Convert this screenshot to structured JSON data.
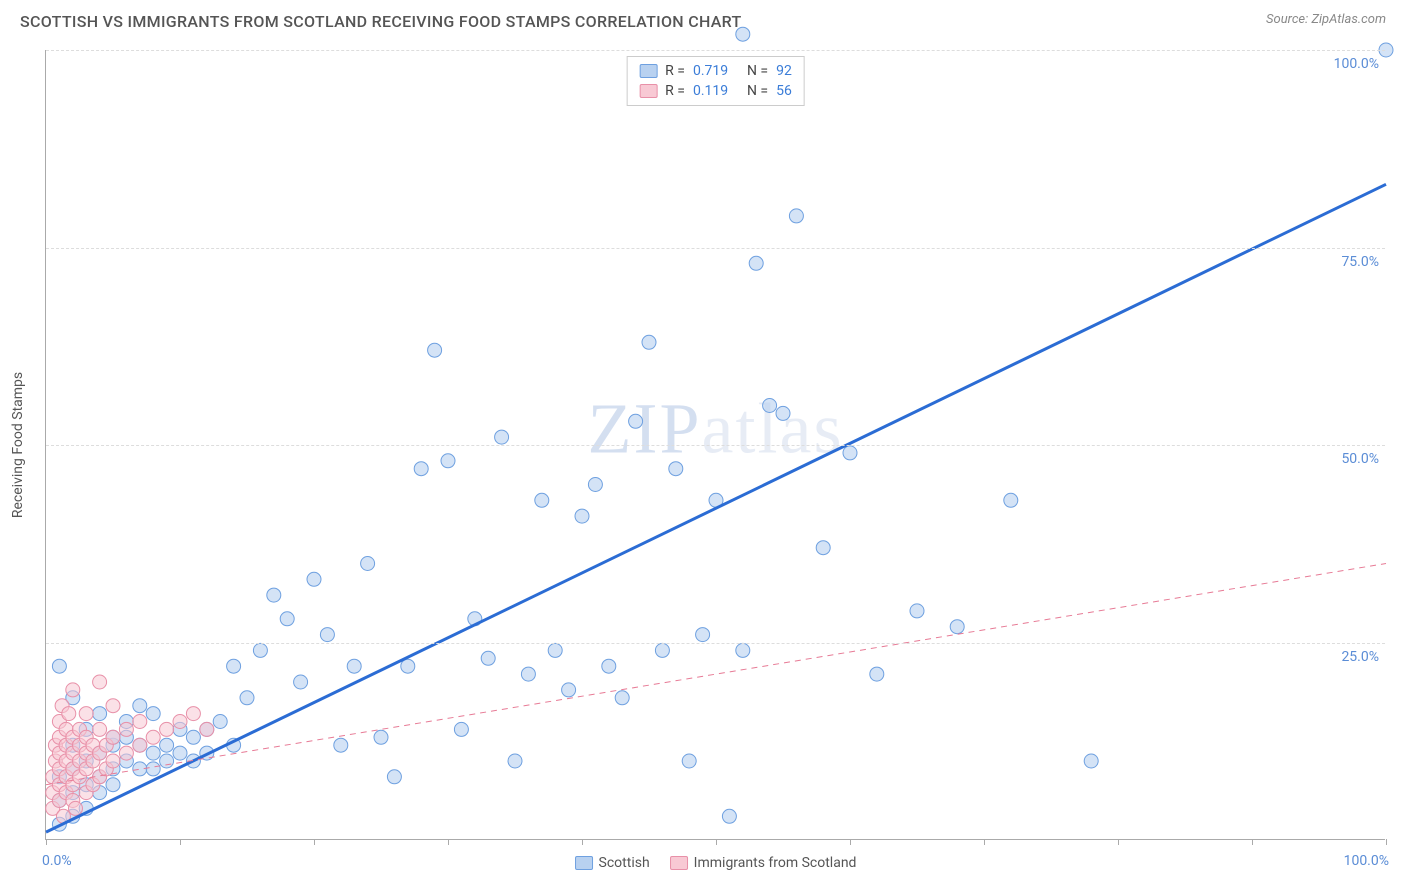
{
  "header": {
    "title": "SCOTTISH VS IMMIGRANTS FROM SCOTLAND RECEIVING FOOD STAMPS CORRELATION CHART",
    "source_label": "Source:",
    "source_name": "ZipAtlas.com"
  },
  "chart": {
    "type": "scatter",
    "ylabel": "Receiving Food Stamps",
    "xlim": [
      0,
      100
    ],
    "ylim": [
      0,
      100
    ],
    "ytick_positions": [
      25,
      50,
      75,
      100
    ],
    "ytick_labels": [
      "25.0%",
      "50.0%",
      "75.0%",
      "100.0%"
    ],
    "xtick_positions": [
      0,
      10,
      20,
      30,
      40,
      50,
      60,
      70,
      80,
      90,
      100
    ],
    "x_axis_min_label": "0.0%",
    "x_axis_max_label": "100.0%",
    "grid_color": "#dddddd",
    "axis_color": "#aaaaaa",
    "background_color": "#ffffff",
    "marker_radius": 7,
    "marker_stroke_width": 1,
    "watermark": "ZIPatlas",
    "series": [
      {
        "name": "Scottish",
        "fill_color": "#b8d1f0",
        "stroke_color": "#6ea0e0",
        "fill_opacity": 0.6,
        "trend": {
          "slope": 0.82,
          "intercept": 1,
          "stroke": "#2b6cd4",
          "width": 3,
          "dash": "none"
        },
        "R": "0.719",
        "N": "92",
        "points": [
          [
            1,
            2
          ],
          [
            1,
            5
          ],
          [
            1,
            8
          ],
          [
            2,
            3
          ],
          [
            2,
            6
          ],
          [
            2,
            9
          ],
          [
            2,
            12
          ],
          [
            3,
            7
          ],
          [
            3,
            10
          ],
          [
            3,
            4
          ],
          [
            4,
            8
          ],
          [
            4,
            11
          ],
          [
            4,
            6
          ],
          [
            5,
            9
          ],
          [
            5,
            12
          ],
          [
            5,
            7
          ],
          [
            6,
            10
          ],
          [
            6,
            13
          ],
          [
            7,
            9
          ],
          [
            7,
            12
          ],
          [
            8,
            11
          ],
          [
            8,
            9
          ],
          [
            9,
            12
          ],
          [
            9,
            10
          ],
          [
            10,
            11
          ],
          [
            10,
            14
          ],
          [
            11,
            10
          ],
          [
            11,
            13
          ],
          [
            12,
            14
          ],
          [
            12,
            11
          ],
          [
            13,
            15
          ],
          [
            14,
            12
          ],
          [
            14,
            22
          ],
          [
            15,
            18
          ],
          [
            16,
            24
          ],
          [
            17,
            31
          ],
          [
            18,
            28
          ],
          [
            19,
            20
          ],
          [
            20,
            33
          ],
          [
            21,
            26
          ],
          [
            22,
            12
          ],
          [
            23,
            22
          ],
          [
            24,
            35
          ],
          [
            25,
            13
          ],
          [
            26,
            8
          ],
          [
            27,
            22
          ],
          [
            28,
            47
          ],
          [
            29,
            62
          ],
          [
            30,
            48
          ],
          [
            31,
            14
          ],
          [
            32,
            28
          ],
          [
            33,
            23
          ],
          [
            34,
            51
          ],
          [
            35,
            10
          ],
          [
            36,
            21
          ],
          [
            37,
            43
          ],
          [
            38,
            24
          ],
          [
            39,
            19
          ],
          [
            40,
            41
          ],
          [
            41,
            45
          ],
          [
            42,
            22
          ],
          [
            43,
            18
          ],
          [
            44,
            53
          ],
          [
            45,
            63
          ],
          [
            46,
            24
          ],
          [
            47,
            47
          ],
          [
            48,
            10
          ],
          [
            49,
            26
          ],
          [
            50,
            43
          ],
          [
            51,
            3
          ],
          [
            52,
            24
          ],
          [
            53,
            73
          ],
          [
            54,
            55
          ],
          [
            55,
            54
          ],
          [
            56,
            79
          ],
          [
            58,
            37
          ],
          [
            60,
            49
          ],
          [
            62,
            21
          ],
          [
            65,
            29
          ],
          [
            68,
            27
          ],
          [
            72,
            43
          ],
          [
            78,
            10
          ],
          [
            52,
            102
          ],
          [
            100,
            100
          ],
          [
            1,
            22
          ],
          [
            2,
            18
          ],
          [
            3,
            14
          ],
          [
            4,
            16
          ],
          [
            5,
            13
          ],
          [
            6,
            15
          ],
          [
            7,
            17
          ],
          [
            8,
            16
          ]
        ]
      },
      {
        "name": "Immigrants from Scotland",
        "fill_color": "#f8c9d4",
        "stroke_color": "#e890a8",
        "fill_opacity": 0.55,
        "trend": {
          "slope": 0.28,
          "intercept": 7,
          "stroke": "#e77a95",
          "width": 1,
          "dash": "6,5"
        },
        "R": "0.119",
        "N": "56",
        "points": [
          [
            0.5,
            4
          ],
          [
            0.5,
            6
          ],
          [
            0.5,
            8
          ],
          [
            0.7,
            10
          ],
          [
            0.7,
            12
          ],
          [
            1,
            5
          ],
          [
            1,
            7
          ],
          [
            1,
            9
          ],
          [
            1,
            11
          ],
          [
            1,
            13
          ],
          [
            1,
            15
          ],
          [
            1.2,
            17
          ],
          [
            1.3,
            3
          ],
          [
            1.5,
            6
          ],
          [
            1.5,
            8
          ],
          [
            1.5,
            10
          ],
          [
            1.5,
            12
          ],
          [
            1.5,
            14
          ],
          [
            1.7,
            16
          ],
          [
            2,
            5
          ],
          [
            2,
            7
          ],
          [
            2,
            9
          ],
          [
            2,
            11
          ],
          [
            2,
            13
          ],
          [
            2,
            19
          ],
          [
            2.2,
            4
          ],
          [
            2.5,
            8
          ],
          [
            2.5,
            10
          ],
          [
            2.5,
            12
          ],
          [
            2.5,
            14
          ],
          [
            3,
            6
          ],
          [
            3,
            9
          ],
          [
            3,
            11
          ],
          [
            3,
            13
          ],
          [
            3,
            16
          ],
          [
            3.5,
            7
          ],
          [
            3.5,
            10
          ],
          [
            3.5,
            12
          ],
          [
            4,
            8
          ],
          [
            4,
            11
          ],
          [
            4,
            14
          ],
          [
            4,
            20
          ],
          [
            4.5,
            9
          ],
          [
            4.5,
            12
          ],
          [
            5,
            10
          ],
          [
            5,
            13
          ],
          [
            5,
            17
          ],
          [
            6,
            11
          ],
          [
            6,
            14
          ],
          [
            7,
            12
          ],
          [
            7,
            15
          ],
          [
            8,
            13
          ],
          [
            9,
            14
          ],
          [
            10,
            15
          ],
          [
            11,
            16
          ],
          [
            12,
            14
          ]
        ]
      }
    ],
    "legend_bottom": [
      {
        "label": "Scottish",
        "fill": "#b8d1f0",
        "stroke": "#6ea0e0"
      },
      {
        "label": "Immigrants from Scotland",
        "fill": "#f8c9d4",
        "stroke": "#e890a8"
      }
    ]
  }
}
